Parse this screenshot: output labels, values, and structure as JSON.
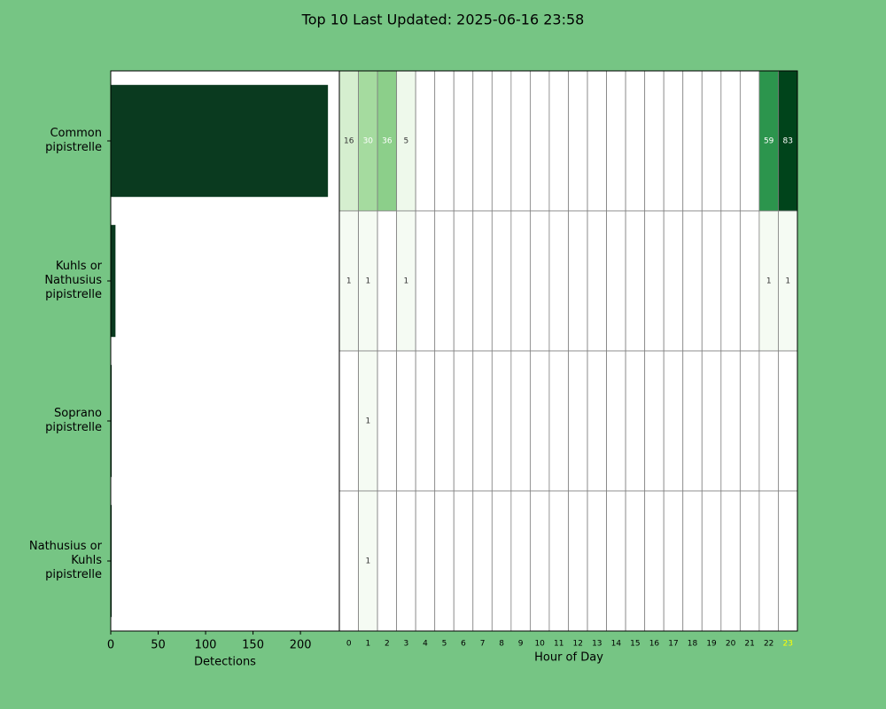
{
  "chart_data": [
    {
      "type": "hbar",
      "title": "Top 10 Last Updated: 2025-06-16 23:58",
      "categories": [
        "Common\npipistrelle",
        "Kuhls or\nNathusius\npipistrelle",
        "Soprano\npipistrelle",
        "Nathusius or\nKuhls\npipistrelle"
      ],
      "values": [
        229,
        5,
        1,
        1
      ],
      "color": "#0a3a1f",
      "xlim": [
        0,
        241
      ],
      "xticks": [
        0,
        50,
        100,
        150,
        200
      ],
      "xlabel": "Detections"
    },
    {
      "type": "heatmap",
      "xlabel": "Hour of Day",
      "x": [
        0,
        1,
        2,
        3,
        4,
        5,
        6,
        7,
        8,
        9,
        10,
        11,
        12,
        13,
        14,
        15,
        16,
        17,
        18,
        19,
        20,
        21,
        22,
        23
      ],
      "highlighted_hour": 23,
      "highlight_color": "#ffff00",
      "colors": [
        "#f7fcf5",
        "#e5f5e0",
        "#c7e9c0",
        "#a1d99b",
        "#74c476",
        "#41ab5d",
        "#238b45",
        "#006d2c",
        "#00441b"
      ],
      "vlim": [
        0,
        83
      ],
      "series": [
        {
          "values": [
            16,
            30,
            36,
            5,
            null,
            null,
            null,
            null,
            null,
            null,
            null,
            null,
            null,
            null,
            null,
            null,
            null,
            null,
            null,
            null,
            null,
            null,
            59,
            83
          ]
        },
        {
          "values": [
            1,
            1,
            null,
            1,
            null,
            null,
            null,
            null,
            null,
            null,
            null,
            null,
            null,
            null,
            null,
            null,
            null,
            null,
            null,
            null,
            null,
            null,
            1,
            1
          ]
        },
        {
          "values": [
            null,
            1,
            null,
            null,
            null,
            null,
            null,
            null,
            null,
            null,
            null,
            null,
            null,
            null,
            null,
            null,
            null,
            null,
            null,
            null,
            null,
            null,
            null,
            null
          ]
        },
        {
          "values": [
            null,
            1,
            null,
            null,
            null,
            null,
            null,
            null,
            null,
            null,
            null,
            null,
            null,
            null,
            null,
            null,
            null,
            null,
            null,
            null,
            null,
            null,
            null,
            null
          ]
        }
      ]
    }
  ]
}
